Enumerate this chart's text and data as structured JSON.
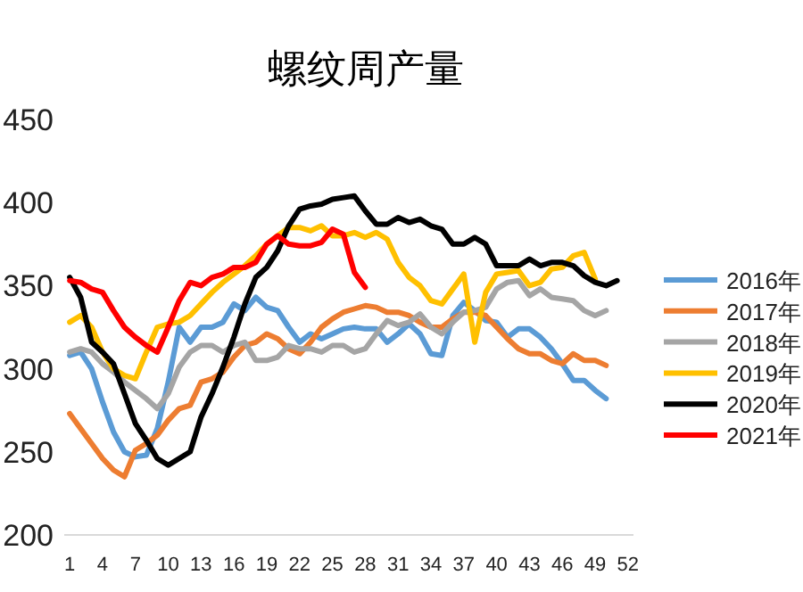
{
  "chart_data": {
    "type": "line",
    "title": "螺纹周产量",
    "categories": [
      "1",
      null,
      null,
      "4",
      null,
      null,
      "7",
      null,
      null,
      "10",
      null,
      null,
      "13",
      null,
      null,
      "16",
      null,
      null,
      "19",
      null,
      null,
      "22",
      null,
      null,
      "25",
      null,
      null,
      "28",
      null,
      null,
      "31",
      null,
      null,
      "34",
      null,
      null,
      "37",
      null,
      null,
      "40",
      null,
      null,
      "43",
      null,
      null,
      "46",
      null,
      null,
      "49",
      null,
      null,
      "52"
    ],
    "ylim": [
      200,
      450
    ],
    "yticks": [
      200,
      250,
      300,
      350,
      400,
      450
    ],
    "legend": "right",
    "series": [
      {
        "name": "2016年",
        "color": "#5b9bd5",
        "values": [
          308,
          310,
          300,
          280,
          262,
          250,
          247,
          248,
          264,
          292,
          325,
          316,
          325,
          325,
          328,
          339,
          335,
          343,
          337,
          335,
          325,
          316,
          321,
          318,
          321,
          324,
          325,
          324,
          324,
          316,
          321,
          327,
          321,
          309,
          308,
          332,
          340,
          335,
          329,
          328,
          319,
          324,
          324,
          319,
          312,
          303,
          293,
          293,
          287,
          282,
          null,
          null
        ]
      },
      {
        "name": "2017年",
        "color": "#ed7d31",
        "values": [
          273,
          264,
          255,
          246,
          239,
          235,
          251,
          255,
          260,
          269,
          276,
          278,
          292,
          294,
          298,
          307,
          314,
          316,
          321,
          318,
          312,
          309,
          316,
          325,
          330,
          334,
          336,
          338,
          337,
          334,
          334,
          332,
          328,
          325,
          325,
          330,
          334,
          334,
          332,
          325,
          318,
          312,
          309,
          309,
          305,
          303,
          309,
          305,
          305,
          302,
          null,
          null
        ]
      },
      {
        "name": "2018年",
        "color": "#a5a5a5",
        "values": [
          310,
          312,
          310,
          303,
          298,
          292,
          287,
          282,
          276,
          285,
          301,
          310,
          314,
          314,
          310,
          314,
          316,
          305,
          305,
          307,
          314,
          312,
          312,
          310,
          314,
          314,
          310,
          312,
          321,
          329,
          326,
          328,
          333,
          325,
          321,
          328,
          334,
          335,
          337,
          348,
          352,
          353,
          344,
          348,
          343,
          342,
          341,
          335,
          332,
          335,
          null,
          null
        ]
      },
      {
        "name": "2019年",
        "color": "#ffc000",
        "values": [
          328,
          332,
          325,
          310,
          300,
          296,
          294,
          310,
          325,
          327,
          328,
          332,
          339,
          346,
          352,
          357,
          362,
          368,
          375,
          380,
          385,
          385,
          383,
          386,
          380,
          380,
          382,
          379,
          382,
          378,
          364,
          355,
          350,
          341,
          339,
          348,
          357,
          316,
          346,
          357,
          358,
          359,
          350,
          352,
          360,
          361,
          368,
          370,
          354,
          null,
          null,
          null
        ]
      },
      {
        "name": "2020年",
        "color": "#000000",
        "values": [
          355,
          343,
          316,
          310,
          303,
          285,
          267,
          257,
          246,
          242,
          246,
          250,
          271,
          285,
          301,
          319,
          339,
          355,
          361,
          371,
          386,
          396,
          398,
          399,
          402,
          403,
          404,
          395,
          387,
          387,
          391,
          388,
          390,
          386,
          384,
          375,
          375,
          379,
          375,
          362,
          362,
          362,
          366,
          362,
          364,
          364,
          362,
          356,
          352,
          350,
          353,
          null
        ]
      },
      {
        "name": "2021年",
        "color": "#ff0000",
        "values": [
          353,
          352,
          348,
          346,
          335,
          325,
          319,
          314,
          310,
          325,
          341,
          352,
          350,
          355,
          357,
          361,
          361,
          364,
          375,
          380,
          375,
          374,
          374,
          376,
          384,
          381,
          358,
          349,
          null,
          null,
          null,
          null,
          null,
          null,
          null,
          null,
          null,
          null,
          null,
          null,
          null,
          null,
          null,
          null,
          null,
          null,
          null,
          null,
          null,
          null,
          null,
          null
        ]
      }
    ]
  }
}
